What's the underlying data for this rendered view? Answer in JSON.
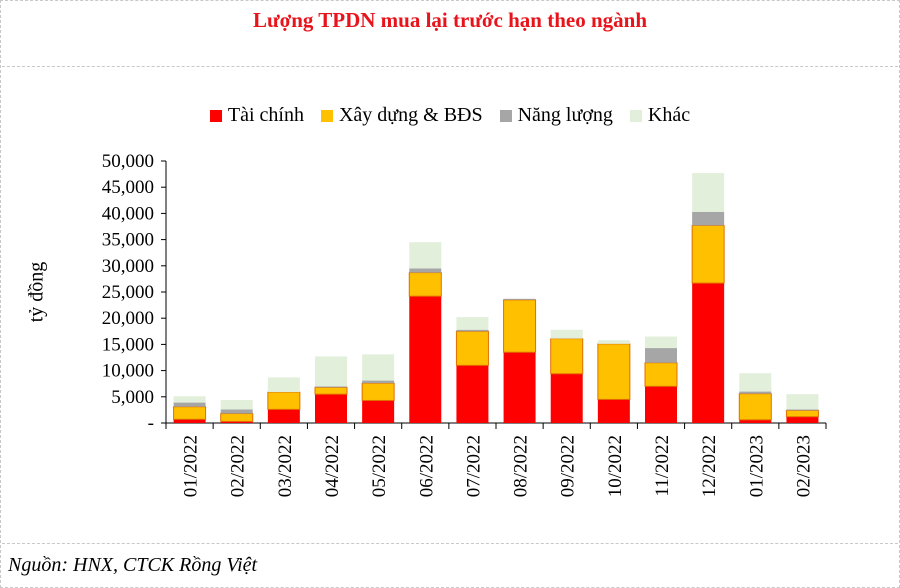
{
  "title": "Lượng TPDN mua lại trước hạn theo ngành",
  "source": "Nguồn: HNX, CTCK Rồng Việt",
  "legend": [
    {
      "name": "Tài chính",
      "color": "#ff0000"
    },
    {
      "name": "Xây dựng & BĐS",
      "color": "#ffc000"
    },
    {
      "name": "Năng lượng",
      "color": "#a6a6a6"
    },
    {
      "name": "Khác",
      "color": "#e2efda"
    }
  ],
  "chart_data": {
    "type": "bar",
    "stacked": true,
    "title": "Lượng TPDN mua lại trước hạn theo ngành",
    "ylabel": "tỷ đồng",
    "ylim": [
      0,
      50000
    ],
    "yticks": [
      0,
      5000,
      10000,
      15000,
      20000,
      25000,
      30000,
      35000,
      40000,
      45000,
      50000
    ],
    "ytick_labels": [
      "-",
      "5,000",
      "10,000",
      "15,000",
      "20,000",
      "25,000",
      "30,000",
      "35,000",
      "40,000",
      "45,000",
      "50,000"
    ],
    "legend_position": "top",
    "grid": false,
    "categories": [
      "01/2022",
      "02/2022",
      "03/2022",
      "04/2022",
      "05/2022",
      "06/2022",
      "07/2022",
      "08/2022",
      "09/2022",
      "10/2022",
      "11/2022",
      "12/2022",
      "01/2023",
      "02/2023"
    ],
    "series": [
      {
        "name": "Tài chính",
        "color": "#ff0000",
        "values": [
          700,
          300,
          2600,
          5500,
          4300,
          24200,
          11000,
          13500,
          9400,
          4500,
          7000,
          26700,
          600,
          1200
        ]
      },
      {
        "name": "Xây dựng & BĐS",
        "color": "#ffc000",
        "values": [
          2400,
          1500,
          3300,
          1300,
          3300,
          4500,
          6500,
          10000,
          6700,
          10600,
          4500,
          11000,
          5000,
          1200
        ]
      },
      {
        "name": "Năng lượng",
        "color": "#a6a6a6",
        "values": [
          800,
          800,
          0,
          200,
          500,
          800,
          300,
          200,
          0,
          0,
          2800,
          2600,
          400,
          200
        ]
      },
      {
        "name": "Khác",
        "color": "#e2efda",
        "values": [
          1200,
          1800,
          2800,
          5700,
          5000,
          5000,
          2400,
          0,
          1700,
          700,
          2200,
          7400,
          3500,
          2900
        ]
      }
    ]
  }
}
